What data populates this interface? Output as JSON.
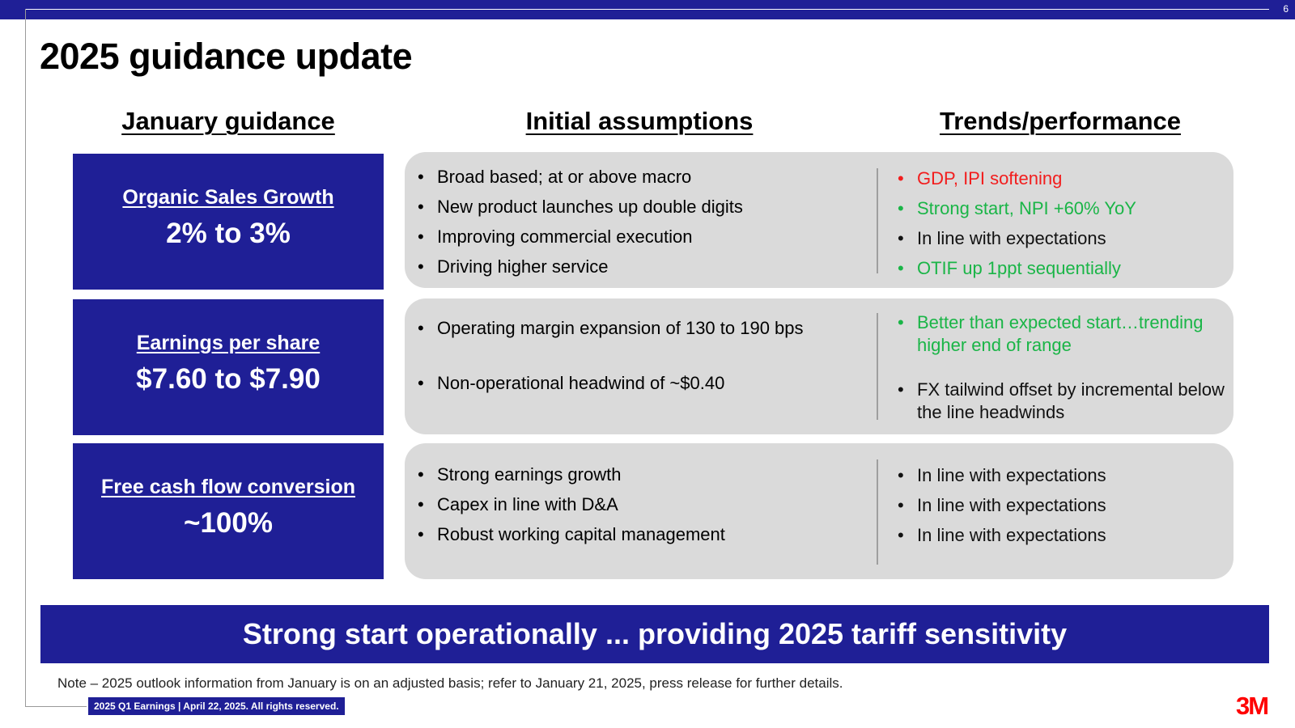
{
  "page_number": "6",
  "title": "2025 guidance update",
  "columns": {
    "january_guidance": "January guidance",
    "initial_assumptions": "Initial assumptions",
    "trends_performance": "Trends/performance"
  },
  "colors": {
    "brand_blue": "#1f1f96",
    "panel_grey": "#dadada",
    "negative_red": "#f21d1d",
    "positive_green": "#1ab547",
    "logo_red": "#ff0000"
  },
  "rows": [
    {
      "guidance_label": "Organic Sales Growth",
      "guidance_value": "2% to 3%",
      "assumptions": [
        "Broad based; at or above macro",
        "New product launches up double digits",
        "Improving commercial execution",
        "Driving higher service"
      ],
      "trends": [
        {
          "text": "GDP, IPI softening",
          "status": "negative"
        },
        {
          "text": "Strong start, NPI +60% YoY",
          "status": "positive"
        },
        {
          "text": "In line with expectations",
          "status": "neutral"
        },
        {
          "text": "OTIF up 1ppt sequentially",
          "status": "positive"
        }
      ]
    },
    {
      "guidance_label": "Earnings per share",
      "guidance_value": "$7.60 to $7.90",
      "assumptions": [
        "Operating margin expansion of 130 to 190 bps",
        "Non-operational headwind of ~$0.40"
      ],
      "trends": [
        {
          "text": "Better than expected start…trending higher end of range",
          "status": "positive"
        },
        {
          "text": "FX tailwind offset by incremental below the line headwinds",
          "status": "neutral"
        }
      ]
    },
    {
      "guidance_label": "Free cash flow conversion",
      "guidance_value": "~100%",
      "assumptions": [
        "Strong earnings growth",
        "Capex in line with D&A",
        "Robust working capital management"
      ],
      "trends": [
        {
          "text": "In line with expectations",
          "status": "neutral"
        },
        {
          "text": "In line with expectations",
          "status": "neutral"
        },
        {
          "text": "In line with expectations",
          "status": "neutral"
        }
      ]
    }
  ],
  "banner": "Strong start operationally ... providing 2025 tariff sensitivity",
  "note": "Note – 2025 outlook information from January is on an adjusted basis; refer to January 21, 2025, press release for further details.",
  "footer": "2025 Q1 Earnings | April 22, 2025. All rights reserved.",
  "logo_text": "3M"
}
